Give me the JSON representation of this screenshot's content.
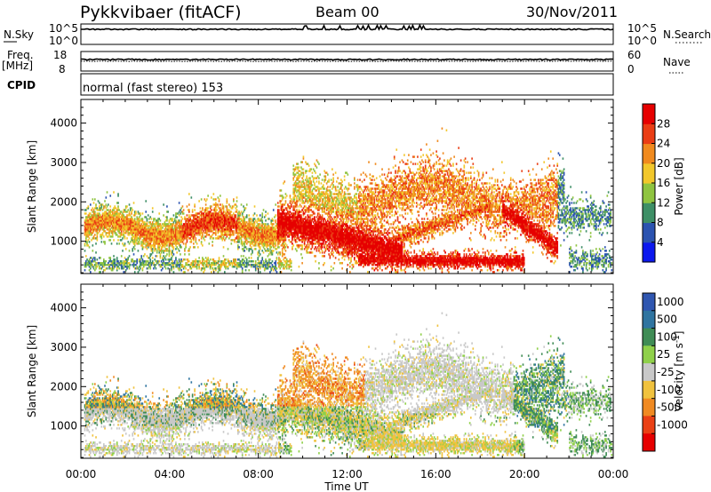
{
  "header": {
    "radar": "Pykkvibaer (fitACF)",
    "beam": "Beam 00",
    "date": "30/Nov/2011"
  },
  "status_panels": {
    "nsky_label": "N.Sky",
    "nsky_ticks": [
      "10^5",
      "10^0"
    ],
    "nsearch_label": "N.Search",
    "nsearch_ticks": [
      "10^5",
      "10^0"
    ],
    "freq_label": "Freq.",
    "freq_unit": "[MHz]",
    "freq_ticks": [
      "18",
      "8"
    ],
    "nave_label": "Nave",
    "nave_ticks": [
      "60",
      "0"
    ],
    "cpid_label": "CPID",
    "cpid_text": "normal (fast stereo) 153"
  },
  "chart_data": [
    {
      "type": "heatmap",
      "title": "",
      "xlabel": "Time UT",
      "ylabel": "Slant Range [km]",
      "xlim": [
        0,
        24
      ],
      "ylim": [
        180,
        4600
      ],
      "x_ticks": [
        "00:00",
        "04:00",
        "08:00",
        "12:00",
        "16:00",
        "20:00",
        "00:00"
      ],
      "y_ticks": [
        1000,
        2000,
        3000,
        4000
      ],
      "colorbar": {
        "label": "Power [dB]",
        "ticks": [
          "4",
          "8",
          "12",
          "16",
          "20",
          "24",
          "28"
        ],
        "colors": [
          "#0c18ee",
          "#2b53b0",
          "#3e8f66",
          "#8fc440",
          "#f2c72b",
          "#f08a1e",
          "#ea3d14",
          "#e60000"
        ]
      },
      "series": [
        {
          "x_range": [
            0.1,
            4.4
          ],
          "range_km": [
            650,
            1700
          ],
          "level": "low-mid"
        },
        {
          "x_range": [
            4.4,
            9.2
          ],
          "range_km": [
            1200,
            1800
          ],
          "level": "mid"
        },
        {
          "x_range": [
            9.2,
            14.5
          ],
          "range_km": [
            500,
            1400
          ],
          "level": "high"
        },
        {
          "x_range": [
            13.5,
            20.0
          ],
          "range_km": [
            330,
            650
          ],
          "level": "high"
        },
        {
          "x_range": [
            9.5,
            21.8
          ],
          "range_km": [
            1600,
            3200
          ],
          "level": "low"
        }
      ]
    },
    {
      "type": "heatmap",
      "title": "",
      "xlabel": "Time UT",
      "ylabel": "Slant Range [km]",
      "xlim": [
        0,
        24
      ],
      "ylim": [
        180,
        4600
      ],
      "x_ticks": [
        "00:00",
        "04:00",
        "08:00",
        "12:00",
        "16:00",
        "20:00",
        "00:00"
      ],
      "y_ticks": [
        1000,
        2000,
        3000,
        4000
      ],
      "colorbar": {
        "label": "Velocity [m s^-1]",
        "label_main": "Velocity [m s",
        "label_sup": "-1",
        "label_end": "]",
        "ticks": [
          "1000",
          "500",
          "100",
          "25",
          "-25",
          "-100",
          "-500",
          "-1000"
        ],
        "colors": [
          "#2f56b0",
          "#2f74a0",
          "#3f8c55",
          "#8fd04a",
          "#c8c8c8",
          "#f0c23e",
          "#f08a22",
          "#ea4015",
          "#e60000"
        ]
      },
      "series": [
        {
          "x_range": [
            0.2,
            8.8
          ],
          "range_km": [
            900,
            1800
          ],
          "level": "mixed -100..100"
        },
        {
          "x_range": [
            9.5,
            12.5
          ],
          "range_km": [
            1500,
            3100
          ],
          "level": "-500..-100"
        },
        {
          "x_range": [
            12.0,
            21.0
          ],
          "range_km": [
            300,
            800
          ],
          "level": "-100..-25"
        },
        {
          "x_range": [
            14.0,
            20.5
          ],
          "range_km": [
            1200,
            2600
          ],
          "level": "-25..25"
        },
        {
          "x_range": [
            19.0,
            22.0
          ],
          "range_km": [
            900,
            2000
          ],
          "level": "100..500"
        }
      ]
    }
  ]
}
